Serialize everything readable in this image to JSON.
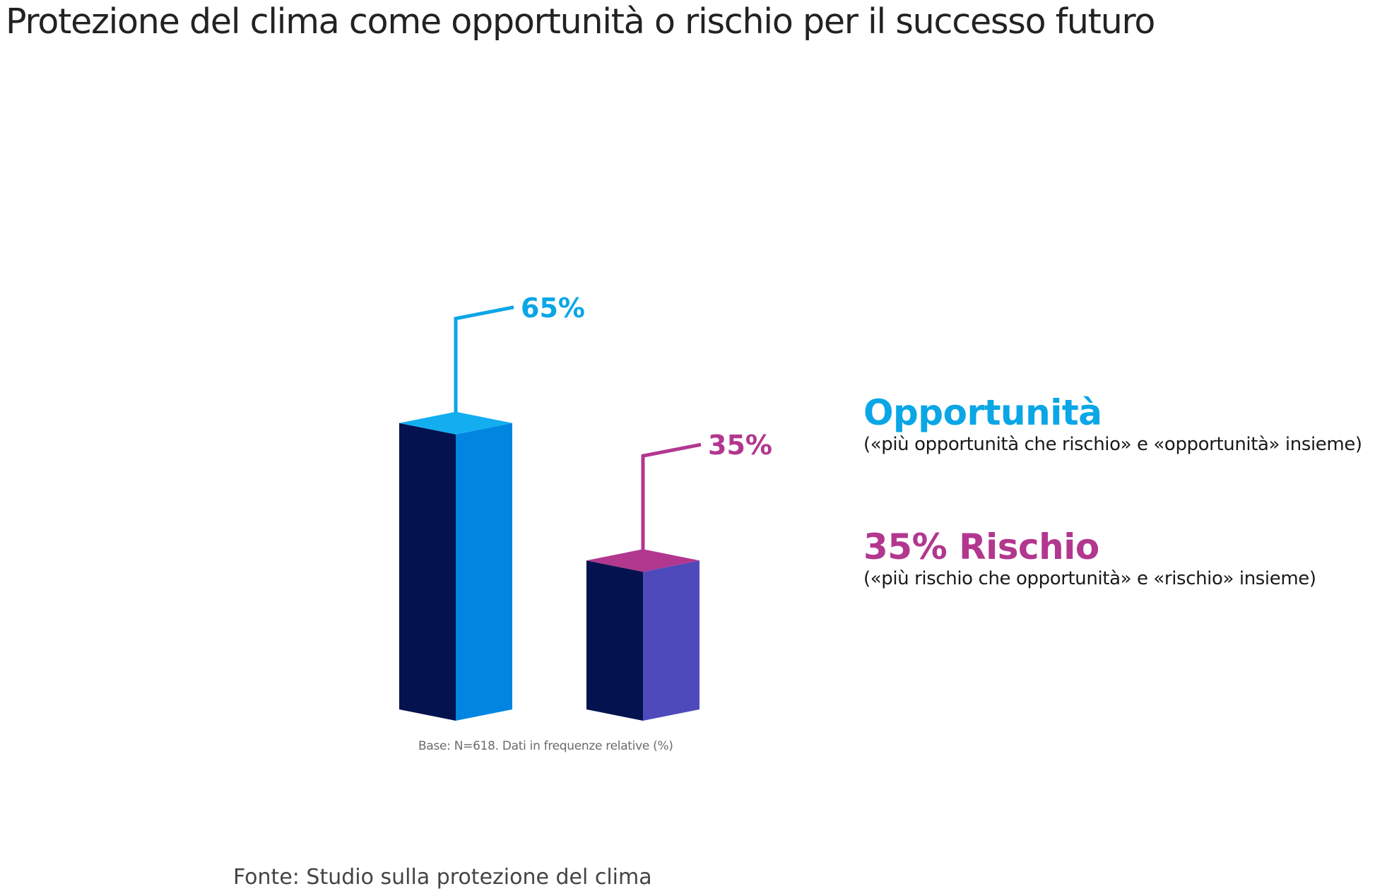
{
  "title": "Protezione del clima come opportunità o rischio per il successo futuro",
  "legend": [
    {
      "title": "Opportunità",
      "subtitle": "(«più opportunità che rischio» e «opportunità» insieme)"
    },
    {
      "title": "35% Rischio",
      "subtitle": "(«più rischio che opportunità» e «rischio» insieme)"
    }
  ],
  "base_note": "Base: N=618. Dati in frequenze relative (%)",
  "source": "Fonte: Studio sulla protezione del clima",
  "colors": {
    "opportunity_accent": "#0aa6e6",
    "opportunity_face": "#0086e0",
    "opportunity_top": "#12aef0",
    "risk_accent": "#b2378f",
    "risk_face": "#4f4abb",
    "risk_top": "#b2378f",
    "bar_side": "#04134f"
  },
  "chart_data": {
    "type": "bar",
    "categories": [
      "Opportunità",
      "Rischio"
    ],
    "values": [
      65,
      35
    ],
    "value_labels": [
      "65%",
      "35%"
    ],
    "ylim": [
      0,
      100
    ],
    "grid": false,
    "legend_position": "right"
  }
}
